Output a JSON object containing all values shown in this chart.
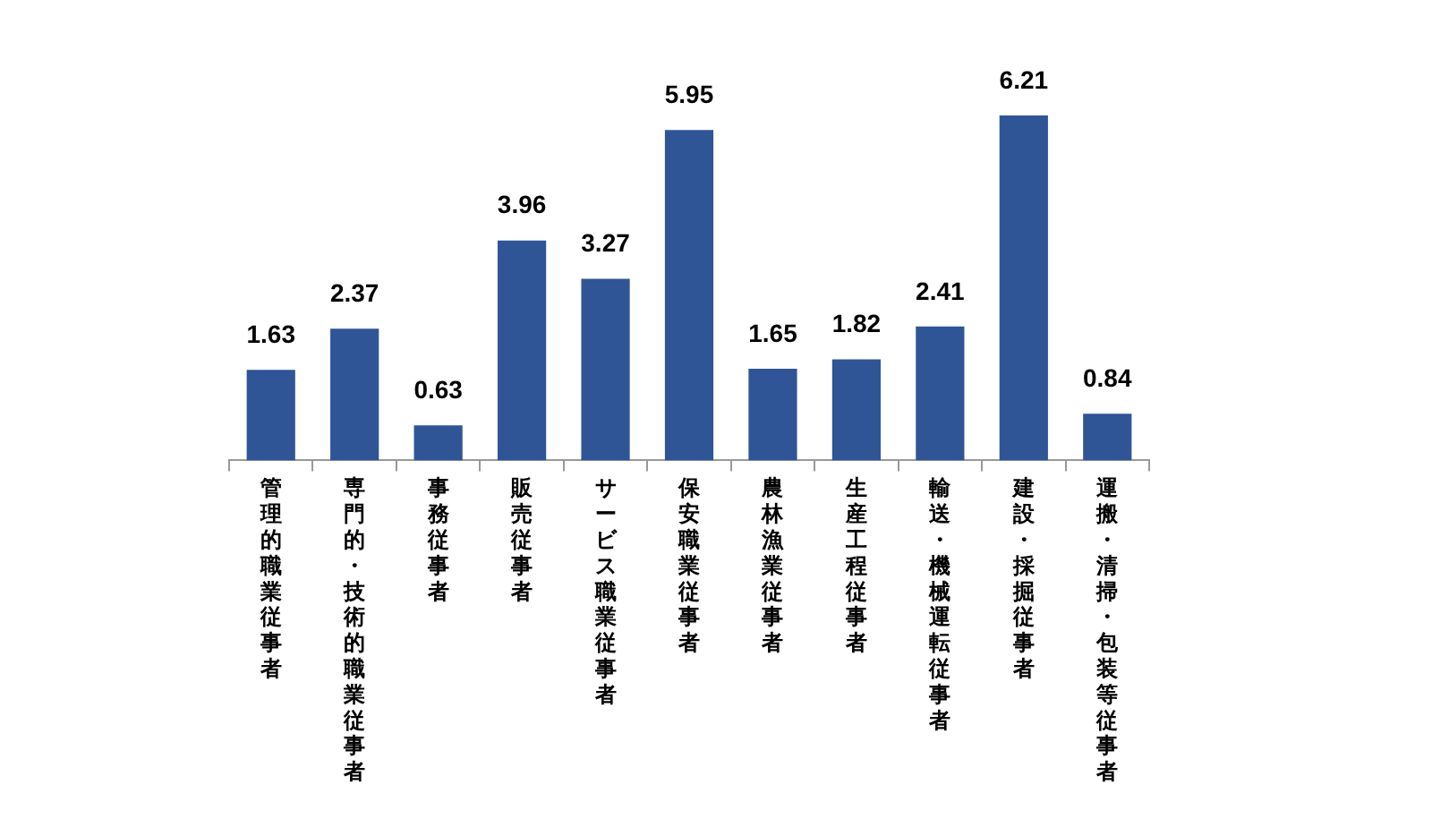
{
  "chart_data": {
    "type": "bar",
    "categories": [
      "管理的職業従事者",
      "専門的・技術的職業従事者",
      "事務従事者",
      "販売従事者",
      "サービス職業従事者",
      "保安職業従事者",
      "農林漁業従事者",
      "生産工程従事者",
      "輸送・機械運転従事者",
      "建設・採掘従事者",
      "運搬・清掃・包装等従事者"
    ],
    "values": [
      1.63,
      2.37,
      0.63,
      3.96,
      3.27,
      5.95,
      1.65,
      1.82,
      2.41,
      6.21,
      0.84
    ],
    "color": "#2f5597",
    "data_labels": true,
    "grid": false,
    "legend": false
  }
}
